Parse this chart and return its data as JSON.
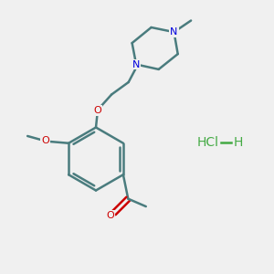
{
  "background_color": "#f0f0f0",
  "bond_color": "#4a7c7e",
  "bond_width": 1.8,
  "nitrogen_color": "#0000dd",
  "oxygen_color": "#cc0000",
  "hcl_color": "#44aa44",
  "fig_width": 3.0,
  "fig_height": 3.0,
  "dpi": 100,
  "xlim": [
    0,
    10
  ],
  "ylim": [
    0,
    10
  ]
}
